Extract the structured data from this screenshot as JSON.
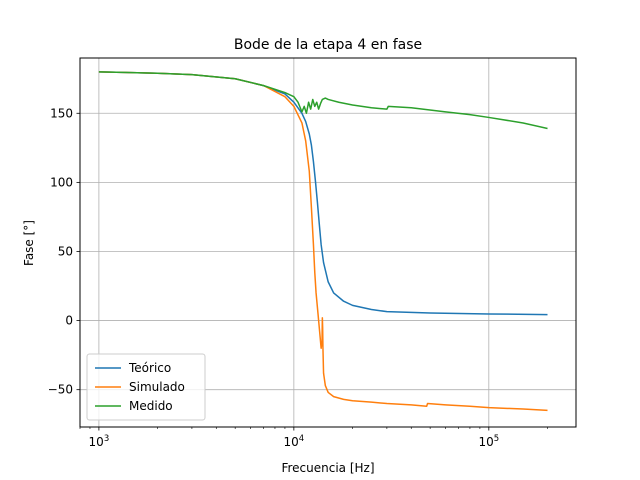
{
  "chart_data": {
    "type": "line",
    "title": "Bode de la etapa 4 en fase",
    "xlabel": "Frecuencia [Hz]",
    "ylabel": "Fase [°]",
    "xscale": "log",
    "xlim": [
      800,
      280000
    ],
    "ylim": [
      -77,
      190
    ],
    "xticks": [
      {
        "value": 1000,
        "base": "10",
        "exp": "3"
      },
      {
        "value": 10000,
        "base": "10",
        "exp": "4"
      },
      {
        "value": 100000,
        "base": "10",
        "exp": "5"
      }
    ],
    "yticks": [
      -50,
      0,
      50,
      100,
      150
    ],
    "grid": true,
    "legend_position": "lower-left",
    "series": [
      {
        "name": "Teórico",
        "color": "#1f77b4",
        "x": [
          1000,
          2000,
          3000,
          5000,
          7000,
          9000,
          10000,
          11000,
          11500,
          12000,
          12300,
          12600,
          12900,
          13200,
          13500,
          13800,
          14200,
          15000,
          16000,
          18000,
          20000,
          25000,
          30000,
          50000,
          100000,
          200000
        ],
        "y": [
          180,
          179,
          178,
          175,
          170,
          164,
          158,
          150,
          144,
          135,
          127,
          115,
          101,
          86,
          70,
          55,
          42,
          28,
          20,
          14,
          11,
          8,
          6.5,
          5.5,
          4.8,
          4.3
        ]
      },
      {
        "name": "Simulado",
        "color": "#ff7f0e",
        "x": [
          1000,
          2000,
          3000,
          5000,
          7000,
          9000,
          10000,
          11000,
          11500,
          12000,
          12300,
          12600,
          12800,
          13000,
          13300,
          13600,
          13800,
          13950,
          14000,
          14050,
          14100,
          14200,
          14500,
          15000,
          16000,
          18000,
          20000,
          25000,
          30000,
          40000,
          48000,
          48500,
          60000,
          80000,
          100000,
          150000,
          200000
        ],
        "y": [
          180,
          179,
          178,
          175,
          170,
          162,
          155,
          143,
          130,
          108,
          82,
          55,
          35,
          20,
          5,
          -10,
          -20,
          -15,
          2,
          -5,
          -20,
          -38,
          -47,
          -52,
          -55,
          -57,
          -58,
          -59,
          -60,
          -61,
          -62,
          -60,
          -61,
          -62,
          -63,
          -64,
          -65
        ]
      },
      {
        "name": "Medido",
        "color": "#2ca02c",
        "x": [
          1000,
          2000,
          3000,
          5000,
          7000,
          9000,
          10000,
          10500,
          11000,
          11300,
          11600,
          11900,
          12200,
          12500,
          12800,
          13100,
          13400,
          13700,
          14000,
          14500,
          15000,
          17000,
          20000,
          25000,
          30000,
          30500,
          40000,
          60000,
          80000,
          100000,
          150000,
          200000
        ],
        "y": [
          180,
          179,
          178,
          175,
          170,
          165,
          162,
          158,
          151,
          155,
          150,
          158,
          153,
          160,
          155,
          158,
          153,
          157,
          160,
          161,
          160,
          158,
          156,
          154,
          153,
          155,
          154,
          151,
          149,
          147,
          143,
          139
        ]
      }
    ]
  }
}
